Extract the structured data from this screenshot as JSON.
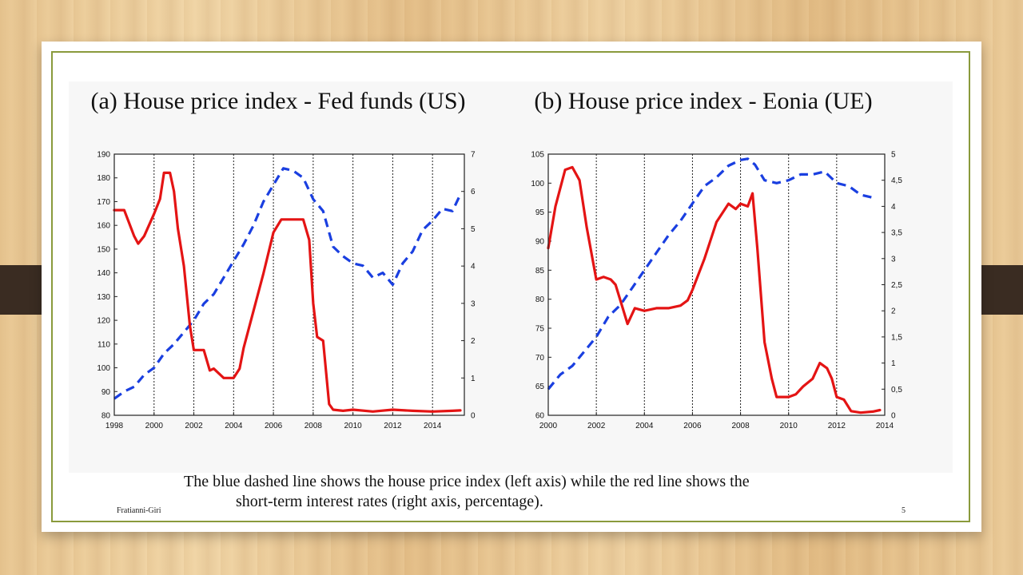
{
  "caption": {
    "line1": "The blue dashed line shows the house price index (left axis) while the red line shows the",
    "line2": "short-term interest rates (right axis, percentage)."
  },
  "footer": {
    "author": "Fratianni-Giri",
    "page": "5"
  },
  "colors": {
    "house_price": "#1a3fe0",
    "interest_rate": "#e41414",
    "frame": "#8a9a3c"
  },
  "chart_data": [
    {
      "type": "line",
      "title": "(a) House price index - Fed funds (US)",
      "xlim": [
        1998,
        2015.6
      ],
      "x_ticks": [
        1998,
        2000,
        2002,
        2004,
        2006,
        2008,
        2010,
        2012,
        2014
      ],
      "y_left": {
        "lim": [
          80,
          190
        ],
        "ticks": [
          80,
          90,
          100,
          110,
          120,
          130,
          140,
          150,
          160,
          170,
          180,
          190
        ]
      },
      "y_right": {
        "lim": [
          0,
          7
        ],
        "ticks": [
          "0",
          "1",
          "2",
          "3",
          "4",
          "5",
          "6",
          "7"
        ]
      },
      "series": [
        {
          "axis": "left",
          "style": "dashed",
          "color": "#1a3fe0",
          "x": [
            1998.0,
            1998.5,
            1999.0,
            1999.5,
            2000.0,
            2000.5,
            2001.0,
            2001.5,
            2002.0,
            2002.5,
            2003.0,
            2003.5,
            2004.0,
            2004.5,
            2005.0,
            2005.5,
            2006.0,
            2006.5,
            2007.0,
            2007.5,
            2008.0,
            2008.5,
            2009.0,
            2009.5,
            2010.0,
            2010.5,
            2011.0,
            2011.5,
            2012.0,
            2012.5,
            2013.0,
            2013.5,
            2014.0,
            2014.5,
            2015.0,
            2015.4
          ],
          "y": [
            87,
            90,
            92,
            97,
            100,
            106,
            110,
            115,
            120,
            127,
            131,
            138,
            145,
            152,
            160,
            170,
            177,
            184,
            183,
            180,
            171,
            166,
            151,
            147,
            144,
            143,
            138,
            140,
            135,
            144,
            149,
            158,
            162,
            167,
            166,
            173
          ]
        },
        {
          "axis": "right",
          "style": "solid",
          "color": "#e41414",
          "x": [
            1998.0,
            1998.5,
            1999.0,
            1999.2,
            1999.5,
            2000.0,
            2000.3,
            2000.5,
            2000.8,
            2001.0,
            2001.2,
            2001.5,
            2001.8,
            2002.0,
            2002.5,
            2002.8,
            2003.0,
            2003.5,
            2004.0,
            2004.3,
            2004.5,
            2005.0,
            2005.5,
            2006.0,
            2006.4,
            2006.5,
            2007.0,
            2007.5,
            2007.8,
            2008.0,
            2008.2,
            2008.5,
            2008.8,
            2009.0,
            2009.5,
            2010.0,
            2011.0,
            2012.0,
            2013.0,
            2014.0,
            2015.0,
            2015.4
          ],
          "y": [
            5.5,
            5.5,
            4.8,
            4.6,
            4.8,
            5.4,
            5.8,
            6.5,
            6.5,
            6.0,
            5.0,
            4.0,
            2.4,
            1.75,
            1.75,
            1.2,
            1.25,
            1.0,
            1.0,
            1.25,
            1.8,
            2.8,
            3.8,
            4.9,
            5.25,
            5.25,
            5.25,
            5.25,
            4.7,
            3.0,
            2.1,
            2.0,
            0.3,
            0.15,
            0.12,
            0.15,
            0.1,
            0.15,
            0.12,
            0.1,
            0.12,
            0.13
          ]
        }
      ]
    },
    {
      "type": "line",
      "title": "(b) House price index - Eonia (UE)",
      "xlim": [
        2000,
        2014
      ],
      "x_ticks": [
        2000,
        2002,
        2004,
        2006,
        2008,
        2010,
        2012,
        2014
      ],
      "y_left": {
        "lim": [
          60,
          105
        ],
        "ticks": [
          60,
          65,
          70,
          75,
          80,
          85,
          90,
          95,
          100,
          105
        ]
      },
      "y_right": {
        "lim": [
          0,
          5
        ],
        "ticks": [
          "0",
          "0,5",
          "1",
          "1,5",
          "2",
          "2,5",
          "3",
          "3,5",
          "4",
          "4,5",
          "5"
        ]
      },
      "series": [
        {
          "axis": "left",
          "style": "dashed",
          "color": "#1a3fe0",
          "x": [
            2000.0,
            2000.5,
            2001.0,
            2001.5,
            2002.0,
            2002.5,
            2003.0,
            2003.5,
            2004.0,
            2004.5,
            2005.0,
            2005.5,
            2006.0,
            2006.5,
            2007.0,
            2007.5,
            2008.0,
            2008.3,
            2008.6,
            2009.0,
            2009.5,
            2010.0,
            2010.5,
            2011.0,
            2011.5,
            2012.0,
            2012.5,
            2013.0,
            2013.5
          ],
          "y": [
            64.5,
            67,
            68.5,
            71,
            73.5,
            77,
            79,
            82,
            85,
            88,
            91,
            93.5,
            96.5,
            99.5,
            101,
            103,
            104,
            104.2,
            103.2,
            100.5,
            100,
            100.5,
            101.5,
            101.5,
            102,
            100,
            99.5,
            98,
            97.5
          ]
        },
        {
          "axis": "right",
          "style": "solid",
          "color": "#e41414",
          "x": [
            2000.0,
            2000.3,
            2000.7,
            2001.0,
            2001.3,
            2001.6,
            2001.8,
            2002.0,
            2002.3,
            2002.6,
            2002.8,
            2003.0,
            2003.3,
            2003.6,
            2004.0,
            2004.5,
            2005.0,
            2005.5,
            2005.8,
            2006.0,
            2006.5,
            2007.0,
            2007.5,
            2007.8,
            2008.0,
            2008.3,
            2008.5,
            2008.7,
            2009.0,
            2009.3,
            2009.5,
            2010.0,
            2010.3,
            2010.6,
            2011.0,
            2011.3,
            2011.6,
            2011.8,
            2012.0,
            2012.3,
            2012.6,
            2013.0,
            2013.5,
            2013.8
          ],
          "y": [
            3.2,
            4.0,
            4.7,
            4.75,
            4.5,
            3.6,
            3.1,
            2.6,
            2.65,
            2.6,
            2.5,
            2.2,
            1.75,
            2.05,
            2.0,
            2.05,
            2.05,
            2.1,
            2.2,
            2.4,
            3.0,
            3.7,
            4.05,
            3.95,
            4.05,
            4.0,
            4.25,
            3.2,
            1.4,
            0.7,
            0.35,
            0.35,
            0.4,
            0.55,
            0.7,
            1.0,
            0.9,
            0.7,
            0.35,
            0.3,
            0.08,
            0.05,
            0.07,
            0.1
          ]
        }
      ]
    }
  ]
}
